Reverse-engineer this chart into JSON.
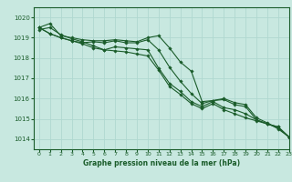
{
  "background_color": "#c8e8e0",
  "grid_color": "#b0d8d0",
  "line_color": "#1a5c2a",
  "title": "Graphe pression niveau de la mer (hPa)",
  "xlim": [
    -0.5,
    23
  ],
  "ylim": [
    1013.5,
    1020.5
  ],
  "yticks": [
    1014,
    1015,
    1016,
    1017,
    1018,
    1019,
    1020
  ],
  "xticks": [
    0,
    1,
    2,
    3,
    4,
    5,
    6,
    7,
    8,
    9,
    10,
    11,
    12,
    13,
    14,
    15,
    16,
    17,
    18,
    19,
    20,
    21,
    22,
    23
  ],
  "series": [
    {
      "x": [
        0,
        1,
        2,
        3,
        4,
        5,
        6,
        7,
        8,
        9,
        10,
        11,
        12,
        13,
        14,
        15,
        16,
        17,
        18,
        19,
        20,
        21,
        22,
        23
      ],
      "y": [
        1019.5,
        1019.7,
        1019.1,
        1019.0,
        1018.9,
        1018.85,
        1018.85,
        1018.9,
        1018.85,
        1018.8,
        1019.0,
        1019.1,
        1018.5,
        1017.8,
        1017.35,
        1015.85,
        1015.9,
        1016.0,
        1015.8,
        1015.7,
        1015.05,
        1014.8,
        1014.5,
        1014.1
      ]
    },
    {
      "x": [
        0,
        1,
        2,
        3,
        4,
        5,
        6,
        7,
        8,
        9,
        10,
        11,
        12,
        13,
        14,
        15,
        16,
        17,
        18,
        19,
        20,
        21,
        22,
        23
      ],
      "y": [
        1019.5,
        1019.2,
        1019.0,
        1018.85,
        1018.75,
        1018.8,
        1018.75,
        1018.85,
        1018.75,
        1018.75,
        1018.9,
        1018.4,
        1017.55,
        1016.85,
        1016.25,
        1015.75,
        1015.9,
        1015.95,
        1015.7,
        1015.6,
        1014.95,
        1014.75,
        1014.55,
        1014.1
      ]
    },
    {
      "x": [
        0,
        1,
        2,
        3,
        4,
        5,
        6,
        7,
        8,
        9,
        10,
        11,
        12,
        13,
        14,
        15,
        16,
        17,
        18,
        19,
        20,
        21,
        22,
        23
      ],
      "y": [
        1019.5,
        1019.2,
        1019.0,
        1018.85,
        1018.7,
        1018.5,
        1018.4,
        1018.55,
        1018.5,
        1018.45,
        1018.4,
        1017.5,
        1016.75,
        1016.35,
        1015.85,
        1015.6,
        1015.85,
        1015.55,
        1015.45,
        1015.25,
        1014.95,
        1014.75,
        1014.6,
        1014.1
      ]
    },
    {
      "x": [
        0,
        1,
        2,
        3,
        4,
        5,
        6,
        7,
        8,
        9,
        10,
        11,
        12,
        13,
        14,
        15,
        16,
        17,
        18,
        19,
        20,
        21,
        22,
        23
      ],
      "y": [
        1019.4,
        1019.5,
        1019.15,
        1018.95,
        1018.8,
        1018.6,
        1018.4,
        1018.35,
        1018.3,
        1018.2,
        1018.1,
        1017.4,
        1016.6,
        1016.2,
        1015.75,
        1015.5,
        1015.75,
        1015.45,
        1015.25,
        1015.05,
        1014.9,
        1014.75,
        1014.6,
        1014.1
      ]
    }
  ]
}
